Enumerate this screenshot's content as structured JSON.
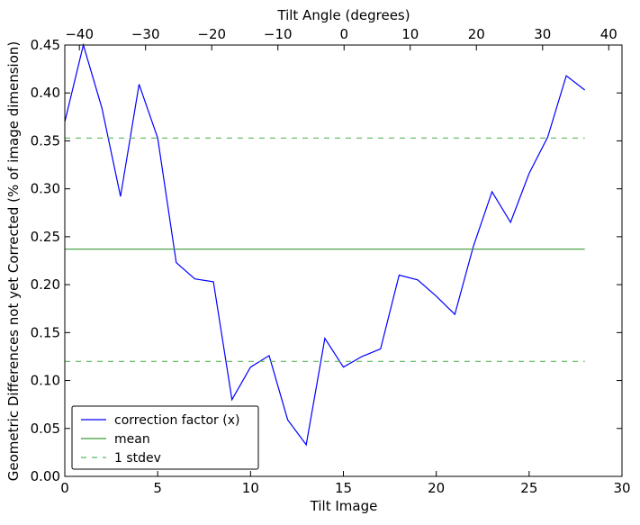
{
  "chart_data": {
    "type": "line",
    "xlabel": "Tilt Image",
    "ylabel": "Geometric Differences not yet Corrected (% of image dimension)",
    "top_xlabel": "Tilt Angle (degrees)",
    "xlim": [
      0,
      30
    ],
    "ylim": [
      0,
      0.45
    ],
    "top_xlim": [
      -42.2,
      42.0
    ],
    "xticks": [
      0,
      5,
      10,
      15,
      20,
      25,
      30
    ],
    "yticks": [
      "0.00",
      "0.05",
      "0.10",
      "0.15",
      "0.20",
      "0.25",
      "0.30",
      "0.35",
      "0.40",
      "0.45"
    ],
    "top_xticks": [
      -40,
      -30,
      -20,
      -10,
      0,
      10,
      20,
      30,
      40
    ],
    "grid": false,
    "legend_placement": "lower-left",
    "series": [
      {
        "name": "correction factor (x)",
        "color": "#0000ff",
        "style": "solid",
        "x": [
          0,
          1,
          2,
          3,
          4,
          5,
          6,
          7,
          8,
          9,
          10,
          11,
          12,
          13,
          14,
          15,
          16,
          17,
          18,
          19,
          20,
          21,
          22,
          23,
          24,
          25,
          26,
          27,
          28
        ],
        "values": [
          0.37,
          0.45,
          0.384,
          0.292,
          0.409,
          0.353,
          0.223,
          0.206,
          0.203,
          0.08,
          0.114,
          0.126,
          0.059,
          0.033,
          0.144,
          0.114,
          0.125,
          0.133,
          0.21,
          0.205,
          0.188,
          0.169,
          0.24,
          0.297,
          0.265,
          0.316,
          0.354,
          0.418,
          0.403
        ]
      },
      {
        "name": "mean",
        "color": "#3a9a3a",
        "style": "solid",
        "x": [
          0,
          28
        ],
        "values": [
          0.237,
          0.237
        ]
      },
      {
        "name": "1 stdev",
        "color": "#5cb85c",
        "style": "dashed",
        "x": [
          0,
          28
        ],
        "values": [
          0.353,
          0.353
        ]
      },
      {
        "name": "1 stdev (lower)",
        "color": "#5cb85c",
        "style": "dashed",
        "x": [
          0,
          28
        ],
        "values": [
          0.12,
          0.12
        ],
        "legend": false
      }
    ]
  }
}
